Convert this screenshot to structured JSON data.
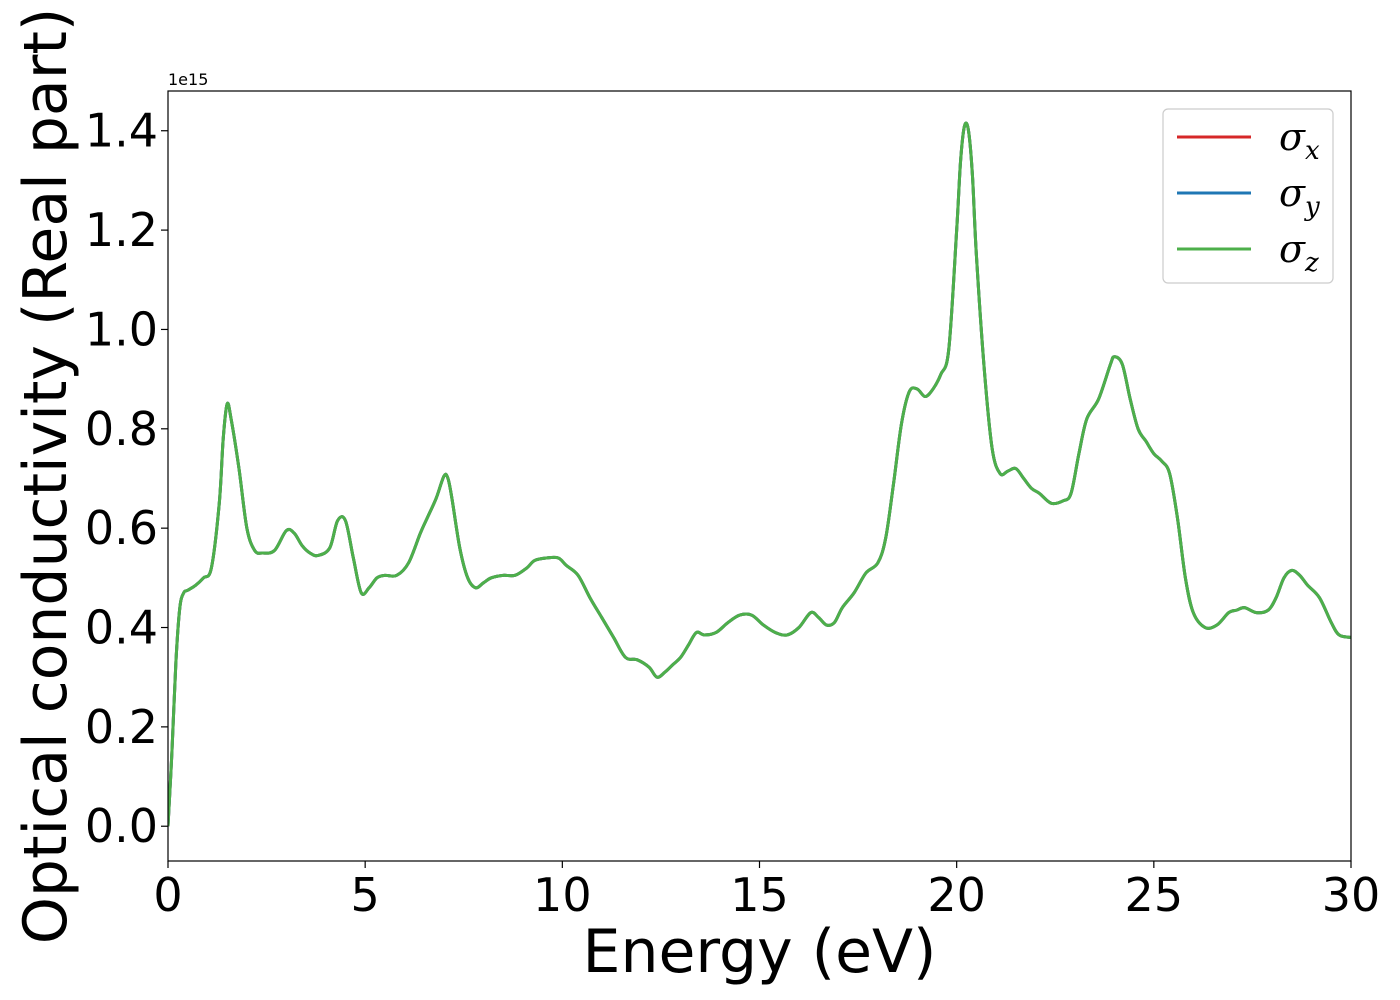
{
  "chart_data": {
    "type": "line",
    "xlabel": "Energy (eV)",
    "ylabel": "Optical conductivity (Real part)",
    "offset_text": "1e15",
    "xlim": [
      0,
      30
    ],
    "ylim": [
      -0.07,
      1.48
    ],
    "xticks": [
      0,
      5,
      10,
      15,
      20,
      25,
      30
    ],
    "xtick_labels": [
      "0",
      "5",
      "10",
      "15",
      "20",
      "25",
      "30"
    ],
    "yticks": [
      0.0,
      0.2,
      0.4,
      0.6,
      0.8,
      1.0,
      1.2,
      1.4
    ],
    "ytick_labels": [
      "0.0",
      "0.2",
      "0.4",
      "0.6",
      "0.8",
      "1.0",
      "1.2",
      "1.4"
    ],
    "grid": false,
    "legend_position": "top-right",
    "x": [
      0,
      0.1,
      0.2,
      0.3,
      0.4,
      0.5,
      0.7,
      0.9,
      1.1,
      1.3,
      1.4,
      1.5,
      1.6,
      1.8,
      2.0,
      2.2,
      2.4,
      2.7,
      3.0,
      3.2,
      3.4,
      3.6,
      3.8,
      4.1,
      4.3,
      4.5,
      4.7,
      4.9,
      5.1,
      5.3,
      5.5,
      5.8,
      6.1,
      6.4,
      6.6,
      6.8,
      7.0,
      7.1,
      7.2,
      7.4,
      7.6,
      7.8,
      8.0,
      8.2,
      8.5,
      8.8,
      9.1,
      9.3,
      9.6,
      9.9,
      10.1,
      10.4,
      10.7,
      11.0,
      11.3,
      11.6,
      11.9,
      12.2,
      12.4,
      12.6,
      12.8,
      13.0,
      13.2,
      13.4,
      13.6,
      13.9,
      14.2,
      14.5,
      14.8,
      15.1,
      15.4,
      15.7,
      16.0,
      16.3,
      16.5,
      16.7,
      16.9,
      17.1,
      17.4,
      17.7,
      18.0,
      18.2,
      18.4,
      18.6,
      18.8,
      19.0,
      19.2,
      19.4,
      19.6,
      19.8,
      20.0,
      20.1,
      20.2,
      20.3,
      20.4,
      20.5,
      20.7,
      20.9,
      21.1,
      21.3,
      21.5,
      21.7,
      21.9,
      22.1,
      22.4,
      22.7,
      22.9,
      23.1,
      23.3,
      23.6,
      23.9,
      24.0,
      24.2,
      24.4,
      24.6,
      24.8,
      25.0,
      25.2,
      25.4,
      25.6,
      25.8,
      26.0,
      26.3,
      26.6,
      26.9,
      27.1,
      27.3,
      27.6,
      27.9,
      28.1,
      28.3,
      28.5,
      28.7,
      28.9,
      29.2,
      29.5,
      29.7,
      30.0
    ],
    "series": [
      {
        "name": "σx",
        "name_main": "σ",
        "name_sub": "x",
        "color": "#d62728",
        "values": [
          0.0,
          0.15,
          0.33,
          0.44,
          0.47,
          0.475,
          0.485,
          0.5,
          0.52,
          0.65,
          0.78,
          0.85,
          0.82,
          0.72,
          0.6,
          0.555,
          0.55,
          0.555,
          0.595,
          0.59,
          0.565,
          0.55,
          0.545,
          0.56,
          0.615,
          0.615,
          0.54,
          0.47,
          0.48,
          0.5,
          0.505,
          0.505,
          0.53,
          0.59,
          0.625,
          0.66,
          0.705,
          0.7,
          0.66,
          0.56,
          0.5,
          0.48,
          0.49,
          0.5,
          0.505,
          0.505,
          0.52,
          0.535,
          0.54,
          0.54,
          0.525,
          0.505,
          0.46,
          0.42,
          0.38,
          0.34,
          0.335,
          0.32,
          0.3,
          0.31,
          0.325,
          0.34,
          0.365,
          0.39,
          0.385,
          0.39,
          0.41,
          0.425,
          0.425,
          0.405,
          0.39,
          0.385,
          0.4,
          0.43,
          0.42,
          0.405,
          0.41,
          0.44,
          0.47,
          0.51,
          0.53,
          0.58,
          0.69,
          0.81,
          0.875,
          0.88,
          0.865,
          0.88,
          0.91,
          0.96,
          1.2,
          1.34,
          1.41,
          1.4,
          1.31,
          1.15,
          0.92,
          0.76,
          0.71,
          0.715,
          0.72,
          0.7,
          0.68,
          0.67,
          0.65,
          0.655,
          0.67,
          0.75,
          0.82,
          0.86,
          0.93,
          0.945,
          0.93,
          0.86,
          0.8,
          0.775,
          0.75,
          0.735,
          0.71,
          0.62,
          0.5,
          0.43,
          0.4,
          0.405,
          0.43,
          0.435,
          0.44,
          0.43,
          0.435,
          0.46,
          0.5,
          0.515,
          0.505,
          0.485,
          0.46,
          0.41,
          0.385,
          0.38
        ]
      },
      {
        "name": "σy",
        "name_main": "σ",
        "name_sub": "y",
        "color": "#1f77b4",
        "values": [
          0.0,
          0.15,
          0.33,
          0.44,
          0.47,
          0.475,
          0.485,
          0.5,
          0.52,
          0.65,
          0.78,
          0.85,
          0.82,
          0.72,
          0.6,
          0.555,
          0.55,
          0.555,
          0.595,
          0.59,
          0.565,
          0.55,
          0.545,
          0.56,
          0.615,
          0.615,
          0.54,
          0.47,
          0.48,
          0.5,
          0.505,
          0.505,
          0.53,
          0.59,
          0.625,
          0.66,
          0.705,
          0.7,
          0.66,
          0.56,
          0.5,
          0.48,
          0.49,
          0.5,
          0.505,
          0.505,
          0.52,
          0.535,
          0.54,
          0.54,
          0.525,
          0.505,
          0.46,
          0.42,
          0.38,
          0.34,
          0.335,
          0.32,
          0.3,
          0.31,
          0.325,
          0.34,
          0.365,
          0.39,
          0.385,
          0.39,
          0.41,
          0.425,
          0.425,
          0.405,
          0.39,
          0.385,
          0.4,
          0.43,
          0.42,
          0.405,
          0.41,
          0.44,
          0.47,
          0.51,
          0.53,
          0.58,
          0.69,
          0.81,
          0.875,
          0.88,
          0.865,
          0.88,
          0.91,
          0.96,
          1.2,
          1.34,
          1.41,
          1.4,
          1.31,
          1.15,
          0.92,
          0.76,
          0.71,
          0.715,
          0.72,
          0.7,
          0.68,
          0.67,
          0.65,
          0.655,
          0.67,
          0.75,
          0.82,
          0.86,
          0.93,
          0.945,
          0.93,
          0.86,
          0.8,
          0.775,
          0.75,
          0.735,
          0.71,
          0.62,
          0.5,
          0.43,
          0.4,
          0.405,
          0.43,
          0.435,
          0.44,
          0.43,
          0.435,
          0.46,
          0.5,
          0.515,
          0.505,
          0.485,
          0.46,
          0.41,
          0.385,
          0.38
        ]
      },
      {
        "name": "σz",
        "name_main": "σ",
        "name_sub": "z",
        "color": "#4daf4a",
        "values": [
          0.0,
          0.15,
          0.33,
          0.44,
          0.47,
          0.475,
          0.485,
          0.5,
          0.52,
          0.65,
          0.78,
          0.85,
          0.82,
          0.72,
          0.6,
          0.555,
          0.55,
          0.555,
          0.595,
          0.59,
          0.565,
          0.55,
          0.545,
          0.56,
          0.615,
          0.615,
          0.54,
          0.47,
          0.48,
          0.5,
          0.505,
          0.505,
          0.53,
          0.59,
          0.625,
          0.66,
          0.705,
          0.7,
          0.66,
          0.56,
          0.5,
          0.48,
          0.49,
          0.5,
          0.505,
          0.505,
          0.52,
          0.535,
          0.54,
          0.54,
          0.525,
          0.505,
          0.46,
          0.42,
          0.38,
          0.34,
          0.335,
          0.32,
          0.3,
          0.31,
          0.325,
          0.34,
          0.365,
          0.39,
          0.385,
          0.39,
          0.41,
          0.425,
          0.425,
          0.405,
          0.39,
          0.385,
          0.4,
          0.43,
          0.42,
          0.405,
          0.41,
          0.44,
          0.47,
          0.51,
          0.53,
          0.58,
          0.69,
          0.81,
          0.875,
          0.88,
          0.865,
          0.88,
          0.91,
          0.96,
          1.2,
          1.34,
          1.41,
          1.4,
          1.31,
          1.15,
          0.92,
          0.76,
          0.71,
          0.715,
          0.72,
          0.7,
          0.68,
          0.67,
          0.65,
          0.655,
          0.67,
          0.75,
          0.82,
          0.86,
          0.93,
          0.945,
          0.93,
          0.86,
          0.8,
          0.775,
          0.75,
          0.735,
          0.71,
          0.62,
          0.5,
          0.43,
          0.4,
          0.405,
          0.43,
          0.435,
          0.44,
          0.43,
          0.435,
          0.46,
          0.5,
          0.515,
          0.505,
          0.485,
          0.46,
          0.41,
          0.385,
          0.38
        ]
      }
    ]
  }
}
